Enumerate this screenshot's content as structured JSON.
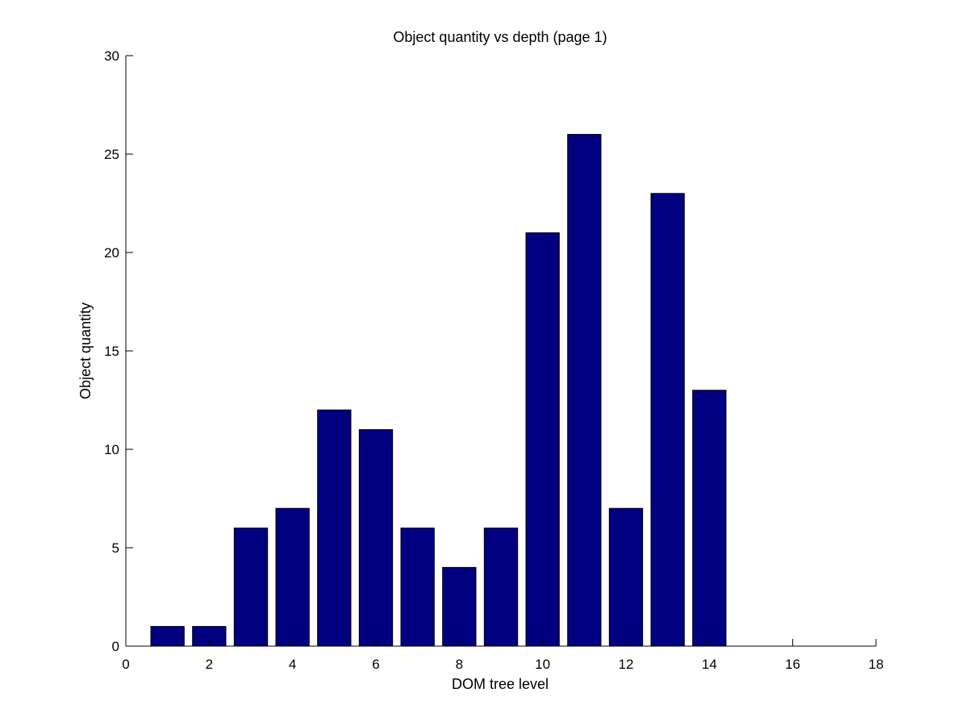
{
  "chart_data": {
    "type": "bar",
    "title": "Object quantity vs depth (page 1)",
    "xlabel": "DOM tree level",
    "ylabel": "Object quantity",
    "categories": [
      1,
      2,
      3,
      4,
      5,
      6,
      7,
      8,
      9,
      10,
      11,
      12,
      13,
      14
    ],
    "values": [
      1,
      1,
      6,
      7,
      12,
      11,
      6,
      4,
      6,
      21,
      26,
      7,
      23,
      13
    ],
    "xlim": [
      0,
      18
    ],
    "ylim": [
      0,
      30
    ],
    "xticks": [
      0,
      2,
      4,
      6,
      8,
      10,
      12,
      14,
      16,
      18
    ],
    "yticks": [
      0,
      5,
      10,
      15,
      20,
      25,
      30
    ],
    "bar_color": "#000080",
    "grid": false,
    "legend": "none"
  }
}
